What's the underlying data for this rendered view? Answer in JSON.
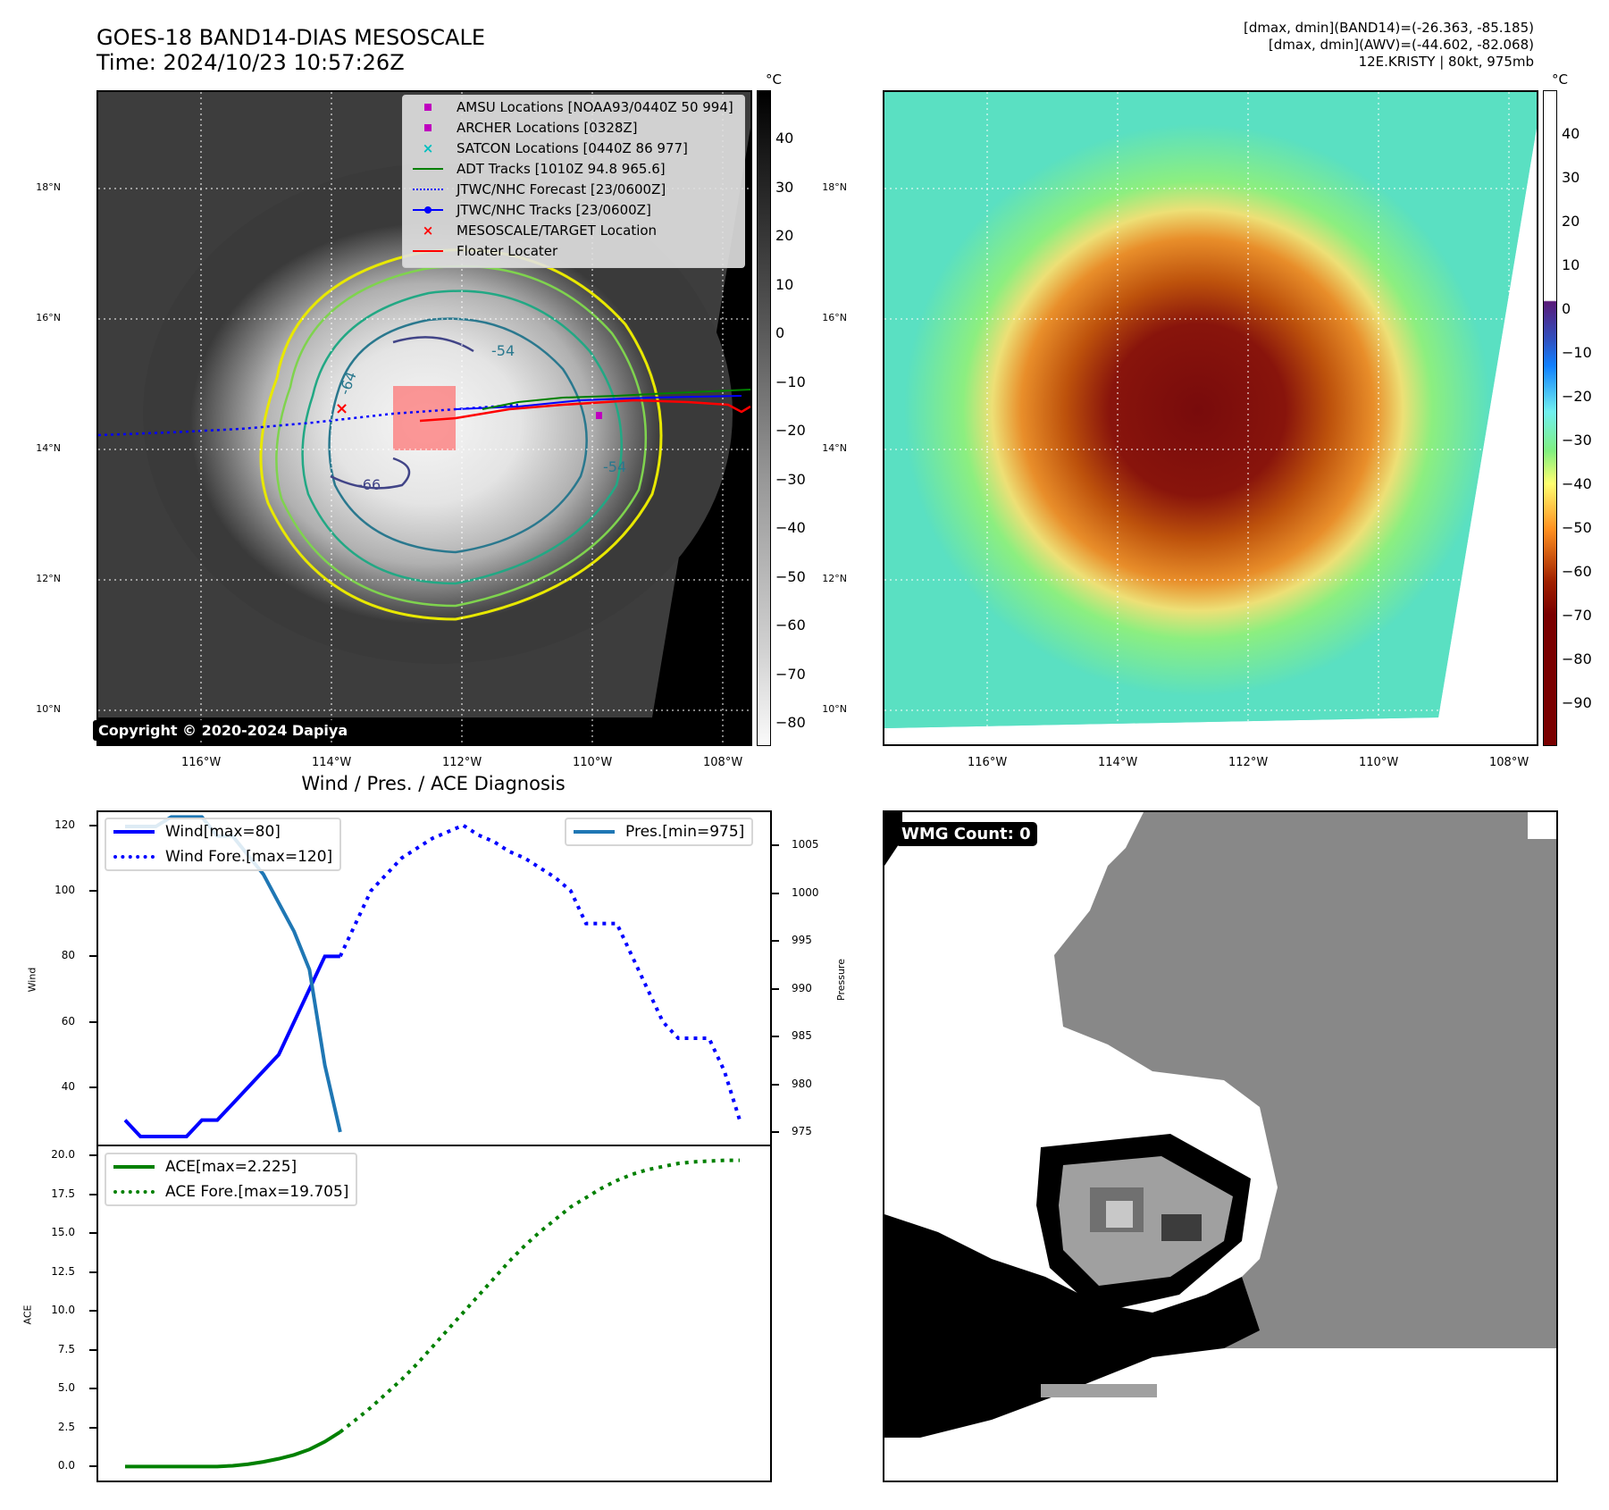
{
  "header": {
    "title_line1": "GOES-18 BAND14-DIAS MESOSCALE",
    "title_line2": "Time: 2024/10/23 10:57:26Z",
    "info_line1": "[dmax, dmin](BAND14)=(-26.363, -85.185)",
    "info_line2": "[dmax, dmin](AWV)=(-44.602, -82.068)",
    "info_line3": "12E.KRISTY | 80kt, 975mb"
  },
  "map": {
    "lat_ticks": [
      "18°N",
      "16°N",
      "14°N",
      "12°N",
      "10°N"
    ],
    "lon_ticks": [
      "116°W",
      "114°W",
      "112°W",
      "110°W",
      "108°W"
    ],
    "copyright": "Copyright © 2020-2024 Dapiya",
    "contour_labels": [
      "-54",
      "-64",
      "-66",
      "-54"
    ],
    "legend": [
      {
        "label": "AMSU Locations [NOAA93/0440Z 50 994]",
        "icon": "square-marker",
        "color": "#bf00bf"
      },
      {
        "label": "ARCHER Locations [0328Z]",
        "icon": "square-marker",
        "color": "#bf00bf"
      },
      {
        "label": "SATCON Locations [0440Z 86 977]",
        "icon": "x-marker",
        "color": "#00bfbf"
      },
      {
        "label": "ADT Tracks [1010Z 94.8 965.6]",
        "icon": "solid-line",
        "color": "#008000"
      },
      {
        "label": "JTWC/NHC Forecast [23/0600Z]",
        "icon": "dotted-line",
        "color": "#0000ff"
      },
      {
        "label": "JTWC/NHC Tracks [23/0600Z]",
        "icon": "line-dot",
        "color": "#0000ff"
      },
      {
        "label": "MESOSCALE/TARGET Location",
        "icon": "x-marker",
        "color": "#ff0000"
      },
      {
        "label": "Floater Locater",
        "icon": "solid-line",
        "color": "#ff0000"
      }
    ]
  },
  "colorbar_gray": {
    "unit": "°C",
    "ticks": [
      "40",
      "30",
      "20",
      "10",
      "0",
      "−10",
      "−20",
      "−30",
      "−40",
      "−50",
      "−60",
      "−70",
      "−80"
    ]
  },
  "colorbar_color": {
    "unit": "°C",
    "ticks": [
      "40",
      "30",
      "20",
      "10",
      "0",
      "−10",
      "−20",
      "−30",
      "−40",
      "−50",
      "−60",
      "−70",
      "−80",
      "−90"
    ]
  },
  "wmg": {
    "label": "WMG Count: 0"
  },
  "colors": {
    "wind": "#0000ff",
    "pressure": "#1f77b4",
    "ace": "#008000",
    "legend_border": "#d6d6d6"
  },
  "chart_data": [
    {
      "type": "line",
      "title": "Wind / Pres. / ACE Diagnosis",
      "ylabel": "Wind",
      "ylabel_right": "Pressure",
      "ylim": [
        22,
        124
      ],
      "ylim_right": [
        973.5,
        1008.5
      ],
      "yticks": [
        "120",
        "100",
        "80",
        "60",
        "40"
      ],
      "yticks_right": [
        "1005",
        "1000",
        "995",
        "990",
        "985",
        "980",
        "975"
      ],
      "x": [
        0,
        1,
        2,
        3,
        4,
        5,
        6,
        7,
        8,
        9,
        10,
        11,
        12,
        13,
        14,
        15,
        16,
        17,
        18,
        19,
        20,
        21,
        22,
        23,
        24,
        25,
        26,
        27,
        28,
        29,
        30,
        31,
        32,
        33,
        34,
        35,
        36,
        37,
        38,
        39,
        40
      ],
      "series": [
        {
          "name": "Wind[max=80]",
          "style": "solid",
          "axis": "left",
          "x": [
            0,
            1,
            2,
            3,
            4,
            5,
            6,
            7,
            8,
            9,
            10,
            11,
            12,
            13,
            14
          ],
          "values": [
            30,
            25,
            25,
            25,
            25,
            30,
            30,
            35,
            40,
            45,
            50,
            60,
            70,
            80,
            80
          ]
        },
        {
          "name": "Wind Fore.[max=120]",
          "style": "dotted",
          "axis": "left",
          "x": [
            14,
            15,
            16,
            17,
            18,
            19,
            20,
            21,
            22,
            23,
            24,
            25,
            26,
            27,
            28,
            29,
            30,
            31,
            32,
            33,
            34,
            35,
            36,
            37,
            38,
            39,
            40
          ],
          "values": [
            80,
            90,
            100,
            105,
            110,
            113,
            116,
            118,
            120,
            117,
            115,
            112,
            110,
            107,
            104,
            100,
            90,
            90,
            90,
            80,
            70,
            60,
            55,
            55,
            55,
            45,
            30
          ]
        },
        {
          "name": "Pres.[min=975]",
          "style": "solid",
          "axis": "right",
          "x": [
            0,
            1,
            2,
            3,
            4,
            5,
            6,
            7,
            8,
            9,
            10,
            11,
            12,
            13,
            14
          ],
          "values": [
            1007,
            1007,
            1007,
            1008,
            1008,
            1008,
            1006,
            1006,
            1004,
            1002,
            999,
            996,
            992,
            982,
            975
          ]
        }
      ]
    },
    {
      "type": "line",
      "ylabel": "ACE",
      "ylim": [
        -0.9,
        20.6
      ],
      "yticks": [
        "20.0",
        "17.5",
        "15.0",
        "12.5",
        "10.0",
        "7.5",
        "5.0",
        "2.5",
        "0.0"
      ],
      "series": [
        {
          "name": "ACE[max=2.225]",
          "style": "solid",
          "x": [
            0,
            1,
            2,
            3,
            4,
            5,
            6,
            7,
            8,
            9,
            10,
            11,
            12,
            13,
            14
          ],
          "values": [
            0,
            0,
            0,
            0,
            0,
            0,
            0,
            0.05,
            0.15,
            0.3,
            0.5,
            0.75,
            1.1,
            1.6,
            2.225
          ]
        },
        {
          "name": "ACE Fore.[max=19.705]",
          "style": "dotted",
          "x": [
            14,
            15,
            16,
            17,
            18,
            19,
            20,
            21,
            22,
            23,
            24,
            25,
            26,
            27,
            28,
            29,
            30,
            31,
            32,
            33,
            34,
            35,
            36,
            37,
            38,
            39,
            40
          ],
          "values": [
            2.225,
            3.0,
            3.8,
            4.7,
            5.6,
            6.6,
            7.7,
            8.8,
            9.9,
            11.0,
            12.1,
            13.2,
            14.2,
            15.1,
            15.9,
            16.7,
            17.3,
            17.9,
            18.4,
            18.8,
            19.1,
            19.3,
            19.5,
            19.6,
            19.65,
            19.7,
            19.705
          ]
        }
      ]
    }
  ]
}
